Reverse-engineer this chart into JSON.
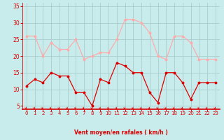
{
  "x": [
    0,
    1,
    2,
    3,
    4,
    5,
    6,
    7,
    8,
    9,
    10,
    11,
    12,
    13,
    14,
    15,
    16,
    17,
    18,
    19,
    20,
    21,
    22,
    23
  ],
  "vent_moyen": [
    11,
    13,
    12,
    15,
    14,
    14,
    9,
    9,
    5,
    13,
    12,
    18,
    17,
    15,
    15,
    9,
    6,
    15,
    15,
    12,
    7,
    12,
    12,
    12
  ],
  "rafales": [
    26,
    26,
    20,
    24,
    22,
    22,
    25,
    19,
    20,
    21,
    21,
    25,
    31,
    31,
    30,
    27,
    20,
    19,
    26,
    26,
    24,
    19,
    19,
    19
  ],
  "color_moyen": "#dd0000",
  "color_rafales": "#ffaaaa",
  "bg_color": "#c8ecec",
  "grid_color": "#aacece",
  "xlabel": "Vent moyen/en rafales ( km/h )",
  "xlabel_color": "#dd0000",
  "tick_color": "#dd0000",
  "spine_color": "#dd0000",
  "ylim": [
    4,
    36
  ],
  "xlim": [
    -0.5,
    23.5
  ],
  "yticks": [
    5,
    10,
    15,
    20,
    25,
    30,
    35
  ],
  "xticks": [
    0,
    1,
    2,
    3,
    4,
    5,
    6,
    7,
    8,
    9,
    10,
    11,
    12,
    13,
    14,
    15,
    16,
    17,
    18,
    19,
    20,
    21,
    22,
    23
  ]
}
